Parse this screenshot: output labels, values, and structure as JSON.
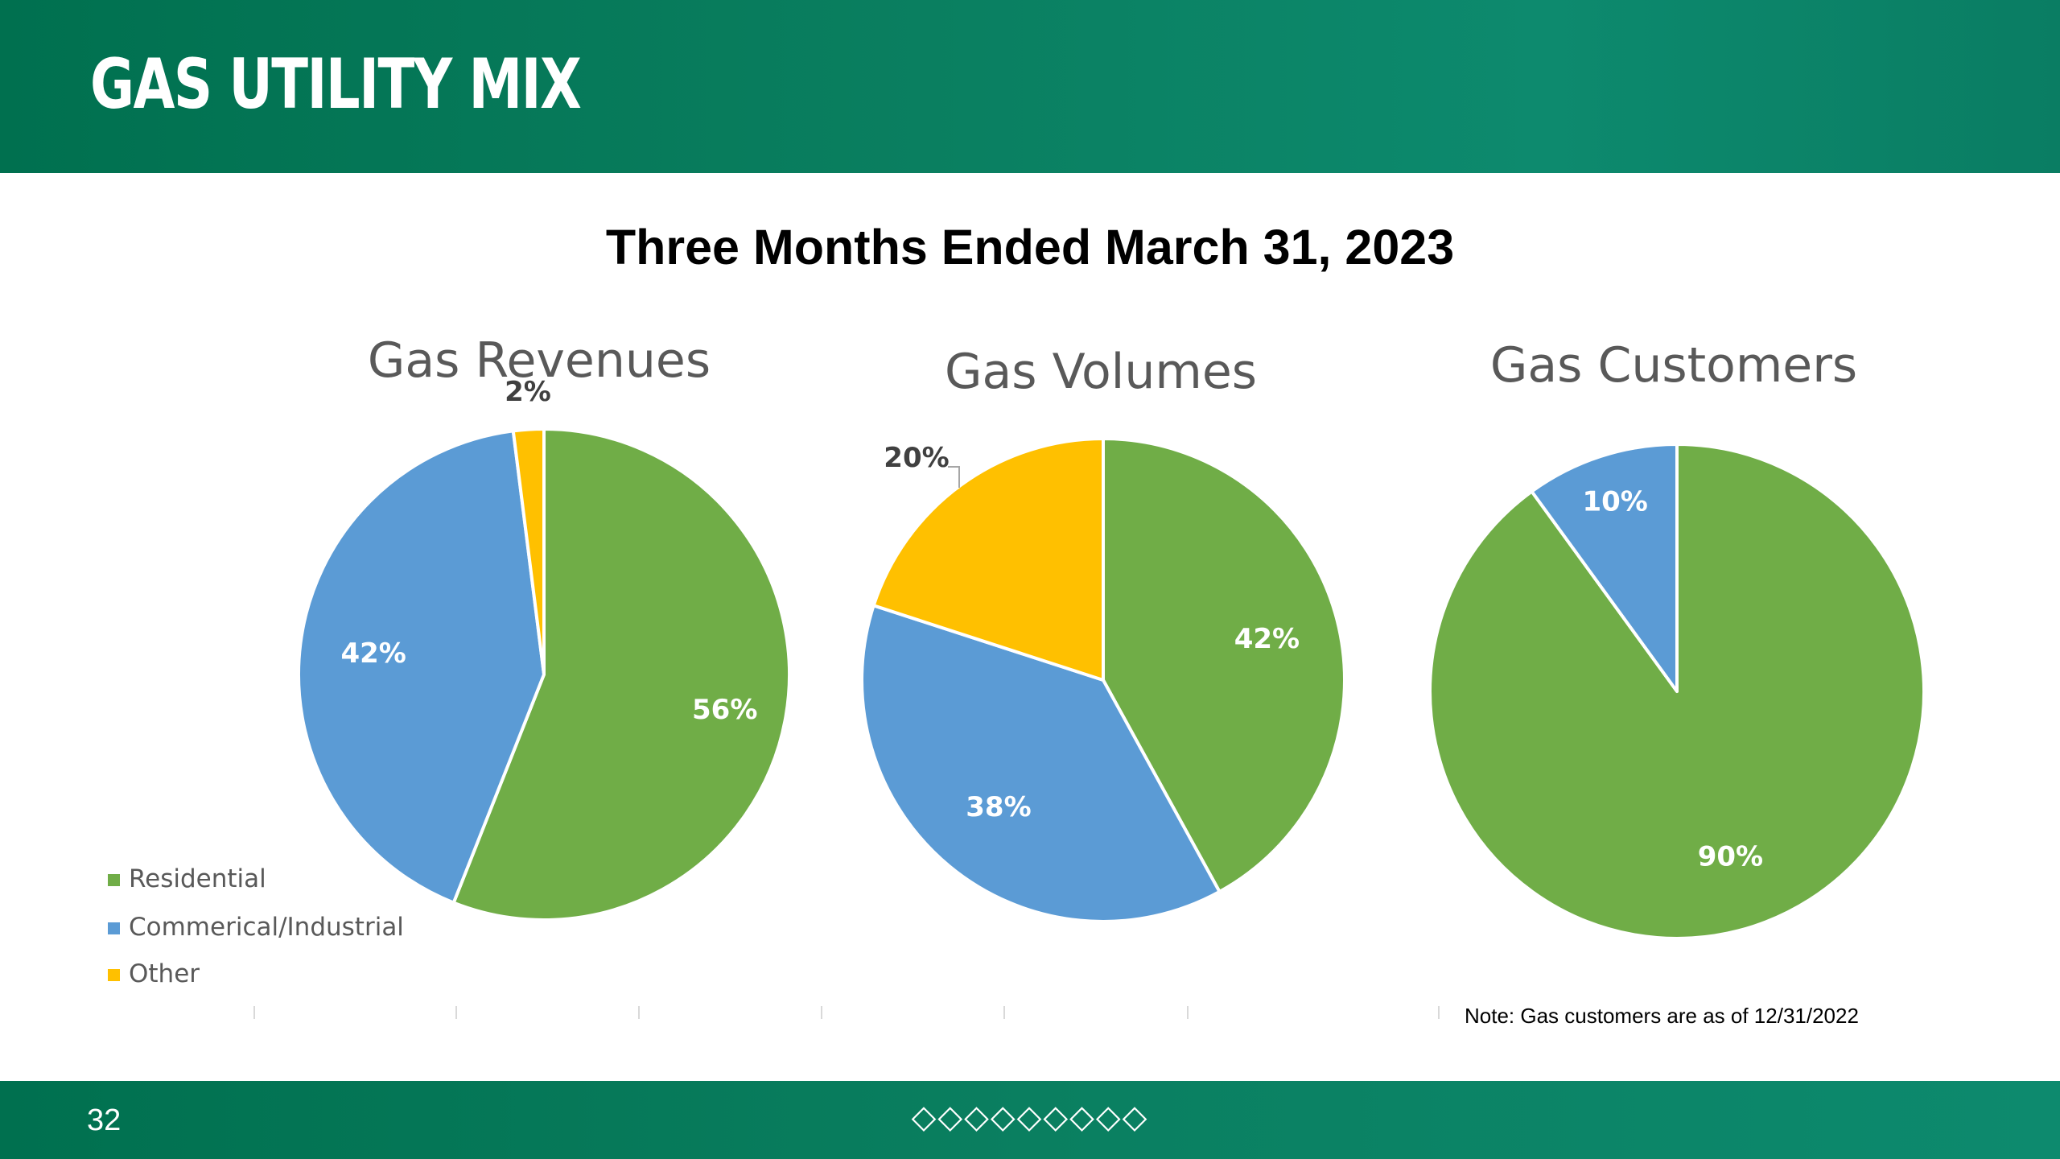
{
  "header": {
    "title": "GAS UTILITY MIX"
  },
  "subtitle": "Three Months Ended March 31, 2023",
  "colors": {
    "residential": "#70ad47",
    "commercial": "#5b9bd5",
    "other": "#ffc000",
    "brand": "#00704f"
  },
  "chart_data": [
    {
      "type": "pie",
      "title": "Gas Revenues",
      "categories": [
        "Residential",
        "Commerical/Industrial",
        "Other"
      ],
      "values": [
        56,
        42,
        2
      ],
      "labels": [
        "56%",
        "42%",
        "2%"
      ]
    },
    {
      "type": "pie",
      "title": "Gas Volumes",
      "categories": [
        "Residential",
        "Commerical/Industrial",
        "Other"
      ],
      "values": [
        42,
        38,
        20
      ],
      "labels": [
        "42%",
        "38%",
        "20%"
      ]
    },
    {
      "type": "pie",
      "title": "Gas Customers",
      "categories": [
        "Residential",
        "Commerical/Industrial"
      ],
      "values": [
        90,
        10
      ],
      "labels": [
        "90%",
        "10%"
      ]
    }
  ],
  "legend": [
    "Residential",
    "Commerical/Industrial",
    "Other"
  ],
  "note": "Note: Gas customers are as of 12/31/2022",
  "footer": {
    "page_number": "32",
    "diamonds": "◇◇◇◇◇◇◇◇◇"
  }
}
